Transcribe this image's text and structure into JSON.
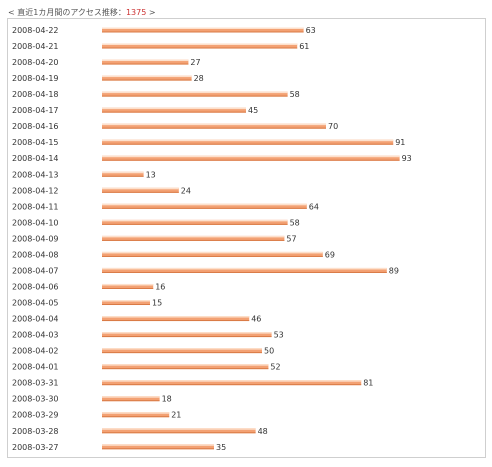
{
  "header": {
    "prefix": "< 直近1カ月間のアクセス推移：",
    "total": "1375",
    "suffix": " >"
  },
  "colors": {
    "bar_main": "#f3a173",
    "bar_highlight": "#fde0cc",
    "bar_shadow": "#d97a45",
    "total": "#cc3333"
  },
  "chart_data": {
    "type": "bar",
    "orientation": "horizontal",
    "title": "",
    "xlabel": "",
    "ylabel": "",
    "categories": [
      "2008-04-22",
      "2008-04-21",
      "2008-04-20",
      "2008-04-19",
      "2008-04-18",
      "2008-04-17",
      "2008-04-16",
      "2008-04-15",
      "2008-04-14",
      "2008-04-13",
      "2008-04-12",
      "2008-04-11",
      "2008-04-10",
      "2008-04-09",
      "2008-04-08",
      "2008-04-07",
      "2008-04-06",
      "2008-04-05",
      "2008-04-04",
      "2008-04-03",
      "2008-04-02",
      "2008-04-01",
      "2008-03-31",
      "2008-03-30",
      "2008-03-29",
      "2008-03-28",
      "2008-03-27"
    ],
    "values": [
      63,
      61,
      27,
      28,
      58,
      45,
      70,
      91,
      93,
      13,
      24,
      64,
      58,
      57,
      69,
      89,
      16,
      15,
      46,
      53,
      50,
      52,
      81,
      18,
      21,
      48,
      35
    ],
    "xlim": [
      0,
      100
    ],
    "grid": false,
    "data_labels": true
  }
}
